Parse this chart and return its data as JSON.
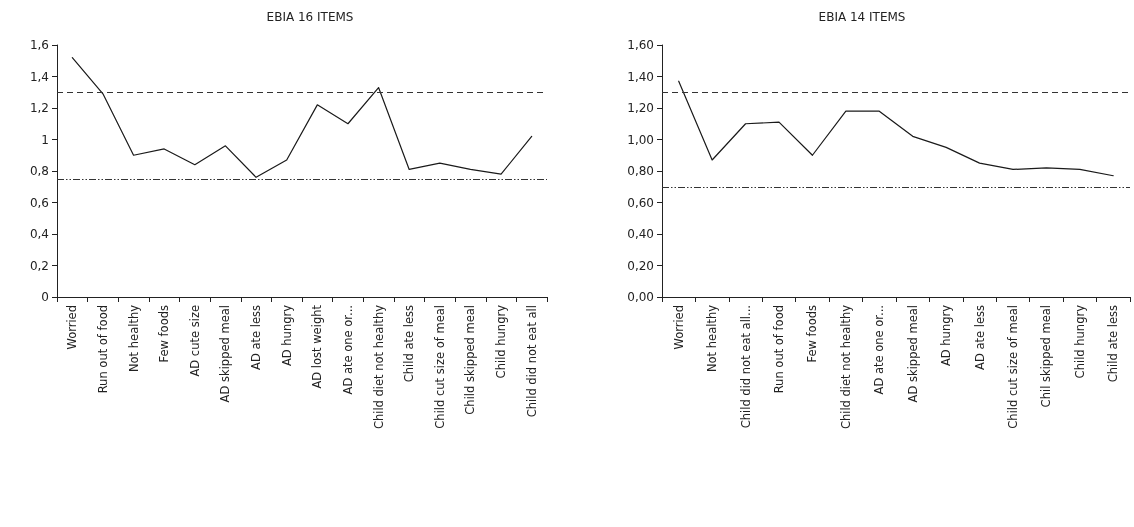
{
  "chart_data": [
    {
      "type": "line",
      "title": "EBIA 16 ITEMS",
      "categories": [
        "Worried",
        "Run out of food",
        "Not healthy",
        "Few foods",
        "AD cute size",
        "AD skipped meal",
        "AD ate less",
        "AD hungry",
        "AD lost weight",
        "AD ate one or...",
        "Child diet not healthy",
        "Child ate less",
        "Child cut size of meal",
        "Child skipped meal",
        "Child hungry",
        "Child did not eat all"
      ],
      "series": [
        {
          "color": "#1a1a1a",
          "values": [
            1.52,
            1.29,
            0.9,
            0.94,
            0.84,
            0.96,
            0.76,
            0.87,
            1.22,
            1.1,
            1.33,
            0.81,
            0.85,
            0.81,
            0.78,
            1.02
          ]
        }
      ],
      "ylim": [
        0,
        1.6
      ],
      "yticks": [
        0,
        {
          "value": 0.2,
          "label": "0,2"
        },
        {
          "value": 0.4,
          "label": "0,4"
        },
        {
          "value": 0.6,
          "label": "0,6"
        },
        {
          "value": 0.8,
          "label": "0,8"
        },
        1,
        {
          "value": 1.2,
          "label": "1,2"
        },
        {
          "value": 1.4,
          "label": "1,4"
        },
        {
          "value": 1.6,
          "label": "1,6"
        }
      ],
      "ref_lines": [
        {
          "axis": "y",
          "value": 1.3,
          "line_style": "dashed",
          "color": "#333333"
        },
        {
          "axis": "y",
          "value": 0.75,
          "line_style": "dotted",
          "color": "#333333"
        }
      ],
      "grid": false,
      "marker": "none",
      "line_style": "solid"
    },
    {
      "type": "line",
      "title": "EBIA 14 ITEMS",
      "categories": [
        "Worried",
        "Not healthy",
        "Child did not eat all...",
        "Run out of food",
        "Few foods",
        "Child diet not healthy",
        "AD ate one or...",
        "AD skipped meal",
        "AD hungry",
        "AD ate less",
        "Child cut size of meal",
        "Chil skipped meal",
        "Child hungry",
        "Child ate less"
      ],
      "series": [
        {
          "color": "#1a1a1a",
          "values": [
            1.37,
            0.87,
            1.1,
            1.11,
            0.9,
            1.18,
            1.18,
            1.02,
            0.95,
            0.85,
            0.81,
            0.82,
            0.81,
            0.77
          ]
        }
      ],
      "ylim": [
        0,
        1.6
      ],
      "yticks": [
        {
          "value": 0,
          "label": "0,00"
        },
        {
          "value": 0.2,
          "label": "0,20"
        },
        {
          "value": 0.4,
          "label": "0,40"
        },
        {
          "value": 0.6,
          "label": "0,60"
        },
        {
          "value": 0.8,
          "label": "0,80"
        },
        {
          "value": 1,
          "label": "1,00"
        },
        {
          "value": 1.2,
          "label": "1,20"
        },
        {
          "value": 1.4,
          "label": "1,40"
        },
        {
          "value": 1.6,
          "label": "1,60"
        }
      ],
      "ref_lines": [
        {
          "axis": "y",
          "value": 1.3,
          "line_style": "dashed",
          "color": "#333333"
        },
        {
          "axis": "y",
          "value": 0.7,
          "line_style": "dotted",
          "color": "#333333"
        }
      ],
      "grid": false,
      "marker": "none",
      "line_style": "solid"
    }
  ]
}
